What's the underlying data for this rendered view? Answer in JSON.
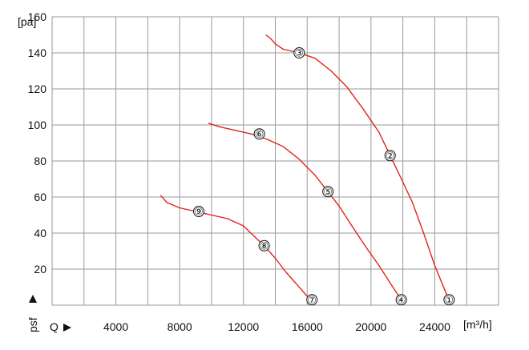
{
  "chart_data": {
    "type": "line",
    "title": "",
    "xlabel": "Q",
    "ylabel": "psf",
    "x_unit": "[m³/h]",
    "y_unit": "[pa]",
    "xlim": [
      0,
      28000
    ],
    "ylim": [
      0,
      160
    ],
    "x_ticks": [
      4000,
      8000,
      12000,
      16000,
      20000,
      24000
    ],
    "x_tick_labels": [
      "4000",
      "8000",
      "12000",
      "16000",
      "20000",
      "24000"
    ],
    "y_ticks": [
      20,
      40,
      60,
      80,
      100,
      120,
      140,
      160
    ],
    "y_tick_labels": [
      "20",
      "40",
      "60",
      "80",
      "100",
      "120",
      "140",
      "160"
    ],
    "grid": true,
    "line_color": "#e0231c",
    "series": [
      {
        "points": [
          [
            13400,
            150
          ],
          [
            13700,
            148
          ],
          [
            14000,
            145
          ],
          [
            14500,
            142
          ],
          [
            15500,
            140
          ],
          [
            16500,
            137
          ],
          [
            17500,
            130
          ],
          [
            18500,
            121
          ],
          [
            19500,
            109
          ],
          [
            20500,
            96
          ],
          [
            21200,
            83
          ],
          [
            21800,
            72
          ],
          [
            22600,
            57
          ],
          [
            23300,
            40
          ],
          [
            24000,
            22
          ],
          [
            24600,
            9
          ],
          [
            24900,
            3
          ]
        ]
      },
      {
        "points": [
          [
            9800,
            101
          ],
          [
            10500,
            99
          ],
          [
            11500,
            97
          ],
          [
            12500,
            95
          ],
          [
            13500,
            92
          ],
          [
            14500,
            88
          ],
          [
            15500,
            81
          ],
          [
            16500,
            72
          ],
          [
            17300,
            63
          ],
          [
            18000,
            55
          ],
          [
            18800,
            44
          ],
          [
            19700,
            32
          ],
          [
            20500,
            22
          ],
          [
            21300,
            11
          ],
          [
            21900,
            3
          ]
        ]
      },
      {
        "points": [
          [
            6800,
            61
          ],
          [
            7200,
            57
          ],
          [
            8000,
            54
          ],
          [
            9000,
            52
          ],
          [
            10000,
            50
          ],
          [
            11000,
            48
          ],
          [
            12000,
            44
          ],
          [
            12700,
            38
          ],
          [
            13300,
            33
          ],
          [
            14000,
            26
          ],
          [
            14700,
            18
          ],
          [
            15400,
            11
          ],
          [
            16000,
            5
          ],
          [
            16300,
            3
          ]
        ]
      }
    ],
    "markers": [
      {
        "label": "①",
        "x": 24900,
        "y": 3
      },
      {
        "label": "②",
        "x": 21200,
        "y": 83
      },
      {
        "label": "③",
        "x": 15500,
        "y": 140
      },
      {
        "label": "④",
        "x": 21900,
        "y": 3
      },
      {
        "label": "⑤",
        "x": 17300,
        "y": 63
      },
      {
        "label": "⑥",
        "x": 13000,
        "y": 95
      },
      {
        "label": "⑦",
        "x": 16300,
        "y": 3
      },
      {
        "label": "⑧",
        "x": 13300,
        "y": 33
      },
      {
        "label": "⑨",
        "x": 9200,
        "y": 52
      }
    ]
  }
}
